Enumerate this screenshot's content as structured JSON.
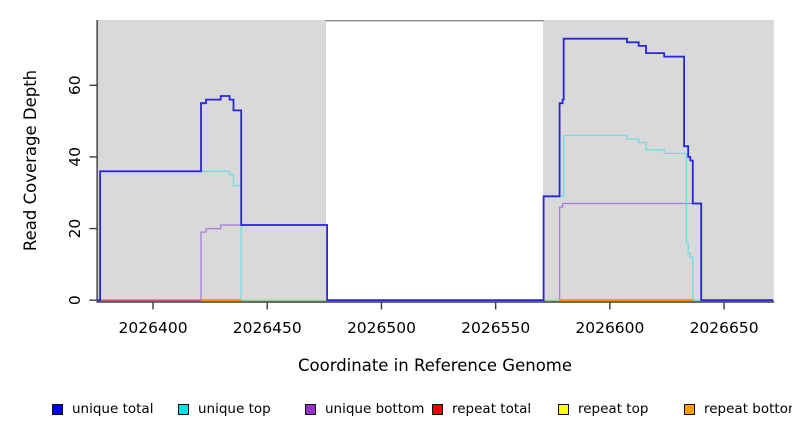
{
  "chart_data": {
    "type": "step-line",
    "title": "",
    "xlabel": "Coordinate in Reference Genome",
    "ylabel": "Read Coverage Depth",
    "xlim": [
      2026375.9,
      2026671.5
    ],
    "ylim": [
      0,
      78
    ],
    "x_ticks": [
      2026400,
      2026450,
      2026500,
      2026550,
      2026600,
      2026650
    ],
    "y_ticks": [
      0,
      20,
      40,
      60
    ],
    "grid": false,
    "legend_position": "bottom",
    "shaded_regions": [
      {
        "name": "repeat-region-left",
        "from": 2026375.9,
        "to": 2026475.5
      },
      {
        "name": "repeat-region-right",
        "from": 2026571.0,
        "to": 2026671.5
      }
    ],
    "gap_top_border": {
      "from": 2026475.5,
      "to": 2026571.0
    },
    "series": [
      {
        "name": "unique bottom",
        "color": "#aa7add",
        "width": 1.3,
        "points": [
          [
            2026375.9,
            0
          ],
          [
            2026421,
            19
          ],
          [
            2026423.2,
            20
          ],
          [
            2026429.6,
            21
          ],
          [
            2026476.2,
            0
          ],
          [
            2026578,
            26
          ],
          [
            2026579.3,
            27
          ],
          [
            2026640,
            0
          ],
          [
            2026671.5,
            0
          ]
        ]
      },
      {
        "name": "unique top",
        "color": "#6edde4",
        "width": 1.3,
        "points": [
          [
            2026375.9,
            0
          ],
          [
            2026376.8,
            36
          ],
          [
            2026433.5,
            35
          ],
          [
            2026435.2,
            32
          ],
          [
            2026438.6,
            0
          ],
          [
            2026571,
            29
          ],
          [
            2026579.8,
            46
          ],
          [
            2026607.5,
            45
          ],
          [
            2026612.6,
            44
          ],
          [
            2026615.8,
            42
          ],
          [
            2026623.8,
            41
          ],
          [
            2026633.5,
            16
          ],
          [
            2026634.3,
            13
          ],
          [
            2026635.2,
            12
          ],
          [
            2026636.3,
            0
          ],
          [
            2026671.5,
            0
          ]
        ]
      },
      {
        "name": "unique total",
        "color": "#2626df",
        "width": 1.8,
        "points": [
          [
            2026375.9,
            0
          ],
          [
            2026376.8,
            36
          ],
          [
            2026421,
            55
          ],
          [
            2026423.2,
            56
          ],
          [
            2026429.6,
            57
          ],
          [
            2026433.5,
            56
          ],
          [
            2026435.2,
            53
          ],
          [
            2026438.6,
            21
          ],
          [
            2026476.2,
            0
          ],
          [
            2026571,
            29
          ],
          [
            2026578,
            55
          ],
          [
            2026579.3,
            56
          ],
          [
            2026579.8,
            73
          ],
          [
            2026607.5,
            72
          ],
          [
            2026612.6,
            71
          ],
          [
            2026615.8,
            69
          ],
          [
            2026623.8,
            68
          ],
          [
            2026632.5,
            43
          ],
          [
            2026634.3,
            40
          ],
          [
            2026635.2,
            39
          ],
          [
            2026636.3,
            27
          ],
          [
            2026640,
            0
          ],
          [
            2026671.5,
            0
          ]
        ]
      }
    ],
    "baseline_segments": [
      {
        "name": "repeat total at zero",
        "color": "#e0426b",
        "width": 1.5,
        "from": 2026375.9,
        "to": 2026421
      },
      {
        "name": "repeat bottom at zero",
        "color": "#ff9100",
        "width": 2.1,
        "from": 2026421,
        "to": 2026438.6
      },
      {
        "name": "overlap at zero left",
        "color": "#94d894",
        "width": 1.5,
        "from": 2026438.6,
        "to": 2026476.2
      },
      {
        "name": "overlap at zero right",
        "color": "#94d894",
        "width": 1.5,
        "from": 2026571,
        "to": 2026578
      },
      {
        "name": "repeat bottom at zero right",
        "color": "#ff9100",
        "width": 2.1,
        "from": 2026578,
        "to": 2026636.5
      }
    ],
    "colors": {
      "region_fill": "#d9d9d9",
      "region_edge": "#cfcfcf",
      "axis": "#3c3c3c",
      "gap_border": "#8a8a8a"
    }
  },
  "legend": {
    "items": [
      {
        "label": "unique total",
        "color": "#0000ee"
      },
      {
        "label": "unique top",
        "color": "#00e0e6"
      },
      {
        "label": "unique bottom",
        "color": "#9932cc"
      },
      {
        "label": "repeat total",
        "color": "#ee0000"
      },
      {
        "label": "repeat top",
        "color": "#ffff00"
      },
      {
        "label": "repeat bottom",
        "color": "#ffa000"
      }
    ]
  }
}
